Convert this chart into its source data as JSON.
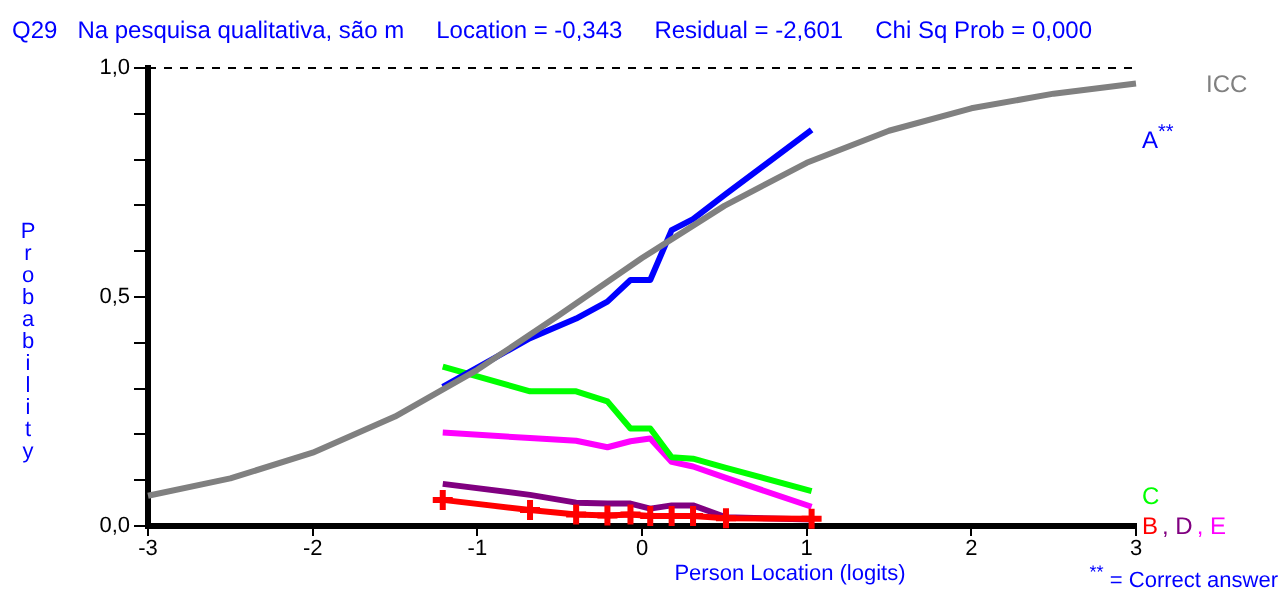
{
  "chart_data": {
    "type": "line",
    "title": "Q29",
    "subtitle": "Na pesquisa qualitativa, são m",
    "xlabel": "Person Location (logits)",
    "ylabel": "Probability",
    "annotations": [
      "Location = -0,343",
      "Residual = -2,601",
      "Chi Sq Prob = 0,000",
      "$^{**}$ = Correct answer"
    ],
    "x": [
      -1.21,
      -0.68,
      -0.4,
      -0.21,
      -0.07,
      0.05,
      0.18,
      0.31,
      0.51,
      1.03
    ],
    "series": [
      {
        "name": "ICC",
        "color": "#808080",
        "x": [
          -3,
          -2.5,
          -2,
          -1.5,
          -1,
          -0.5,
          0,
          0.5,
          1,
          1.5,
          2,
          2.5,
          3
        ],
        "values": [
          0.066,
          0.104,
          0.16,
          0.239,
          0.341,
          0.461,
          0.585,
          0.699,
          0.793,
          0.863,
          0.912,
          0.944,
          0.966
        ]
      },
      {
        "name": "A$^{**}$",
        "color": "#0000ff",
        "values": [
          0.304,
          0.41,
          0.453,
          0.49,
          0.537,
          0.537,
          0.646,
          0.67,
          0.725,
          0.865
        ]
      },
      {
        "name": "C",
        "color": "#00ff00",
        "values": [
          0.348,
          0.294,
          0.294,
          0.272,
          0.213,
          0.213,
          0.15,
          0.147,
          0.127,
          0.076
        ]
      },
      {
        "name": "B",
        "color": "#ff0000",
        "marker": "cross",
        "values": [
          0.057,
          0.035,
          0.025,
          0.023,
          0.025,
          0.022,
          0.022,
          0.022,
          0.017,
          0.016
        ]
      },
      {
        "name": ", D",
        "color": "#800080",
        "values": [
          0.092,
          0.068,
          0.051,
          0.049,
          0.049,
          0.038,
          0.045,
          0.045,
          0.019,
          0.014
        ]
      },
      {
        "name": ", E",
        "color": "#ff00ff",
        "values": [
          0.204,
          0.192,
          0.186,
          0.172,
          0.185,
          0.191,
          0.14,
          0.13,
          0.105,
          0.042
        ]
      }
    ],
    "xlim": [
      -3,
      3
    ],
    "xticks": [
      -3,
      -2,
      -1,
      0,
      1,
      2,
      3
    ],
    "ylim": [
      0,
      1
    ],
    "yticks": [
      {
        "value": 0,
        "label": "0,0"
      },
      {
        "value": 0.1,
        "label": null
      },
      {
        "value": 0.2,
        "label": null
      },
      {
        "value": 0.3,
        "label": null
      },
      {
        "value": 0.4,
        "label": null
      },
      {
        "value": 0.5,
        "label": "0,5"
      },
      {
        "value": 0.6,
        "label": null
      },
      {
        "value": 0.7,
        "label": null
      },
      {
        "value": 0.8,
        "label": null
      },
      {
        "value": 0.9,
        "label": null
      },
      {
        "value": 1,
        "label": "1,0"
      }
    ],
    "ref_lines": [
      {
        "axis": "y",
        "value": 1,
        "color": "#000000",
        "line_style": "dashed"
      }
    ],
    "grid": false,
    "legend": false,
    "marker": "none"
  }
}
